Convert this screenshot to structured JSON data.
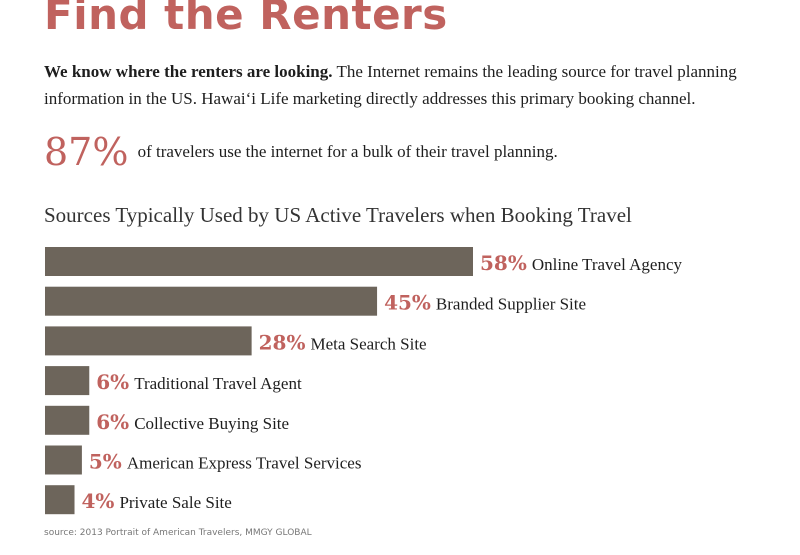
{
  "heading": "Find the Renters",
  "intro": {
    "lead": "We know where the renters are looking.",
    "body": "The Internet remains the leading source for travel planning information in the US. Hawai‘i Life marketing directly addresses this primary booking channel."
  },
  "highlight": {
    "value": "87%",
    "text": "of travelers use the internet for a bulk of their travel planning."
  },
  "colors": {
    "accent": "#c0625e",
    "bar": "#6d655b"
  },
  "chart_data": {
    "type": "bar",
    "orientation": "horizontal",
    "title": "Sources Typically Used by US Active Travelers when Booking Travel",
    "xlabel": "",
    "ylabel": "",
    "value_unit": "%",
    "categories": [
      "Online Travel Agency",
      "Branded Supplier Site",
      "Meta Search Site",
      "Traditional Travel Agent",
      "Collective Buying Site",
      "American Express Travel Services",
      "Private Sale Site"
    ],
    "values": [
      58,
      45,
      28,
      6,
      6,
      5,
      4
    ],
    "value_labels": [
      "58%",
      "45%",
      "28%",
      "6%",
      "6%",
      "5%",
      "4%"
    ],
    "xlim": [
      0,
      100
    ],
    "grid": false,
    "legend": "none"
  },
  "source": "source: 2013 Portrait of American Travelers, MMGY GLOBAL"
}
